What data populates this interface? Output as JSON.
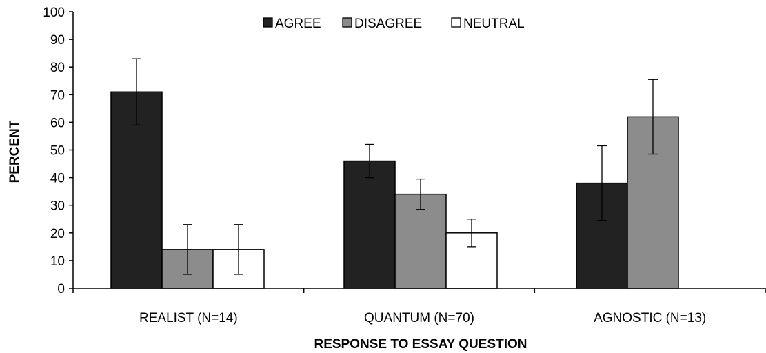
{
  "chart_data": {
    "type": "bar",
    "title": "",
    "xlabel": "RESPONSE TO ESSAY QUESTION",
    "ylabel": "PERCENT",
    "ylim": [
      0,
      100
    ],
    "yticks": [
      0,
      10,
      20,
      30,
      40,
      50,
      60,
      70,
      80,
      90,
      100
    ],
    "grid": false,
    "legend_position": "top-center",
    "categories": [
      "REALIST (N=14)",
      "QUANTUM (N=70)",
      "AGNOSTIC (N=13)"
    ],
    "series": [
      {
        "name": "AGREE",
        "color": "#222222",
        "values": [
          71,
          46,
          38
        ],
        "error": [
          12,
          6,
          13.5
        ]
      },
      {
        "name": "DISAGREE",
        "color": "#8c8c8c",
        "values": [
          14,
          34,
          62
        ],
        "error": [
          9,
          5.5,
          13.5
        ]
      },
      {
        "name": "NEUTRAL",
        "color": "#ffffff",
        "values": [
          14,
          20,
          null
        ],
        "error": [
          9,
          5,
          null
        ]
      }
    ]
  }
}
